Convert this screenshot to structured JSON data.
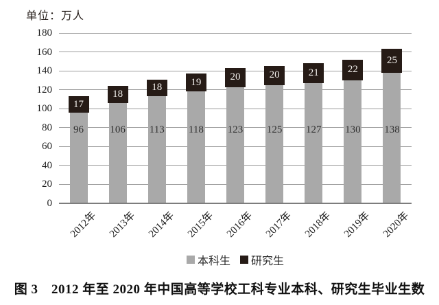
{
  "unit_label": "单位：万人",
  "caption": "图 3　2012 年至 2020 年中国高等学校工科专业本科、研究生毕业生数",
  "legend": {
    "items": [
      {
        "label": "本科生",
        "color": "#a9a9a9"
      },
      {
        "label": "研究生",
        "color": "#261b16"
      }
    ]
  },
  "chart_data": {
    "type": "bar",
    "stacked": true,
    "title": "图 3　2012 年至 2020 年中国高等学校工科专业本科、研究生毕业生数",
    "ylabel": "单位：万人",
    "categories": [
      "2012年",
      "2013年",
      "2014年",
      "2015年",
      "2016年",
      "2017年",
      "2018年",
      "2019年",
      "2020年"
    ],
    "series": [
      {
        "name": "本科生",
        "color": "#a9a9a9",
        "values": [
          96,
          106,
          113,
          118,
          123,
          125,
          127,
          130,
          138
        ]
      },
      {
        "name": "研究生",
        "color": "#261b16",
        "values": [
          17,
          18,
          18,
          19,
          20,
          20,
          21,
          22,
          25
        ]
      }
    ],
    "ylim": [
      0,
      180
    ],
    "ytick_step": 20,
    "grid": true,
    "gridline_color": "#9b9b9b",
    "value_labels": true,
    "legend_position": "bottom"
  }
}
